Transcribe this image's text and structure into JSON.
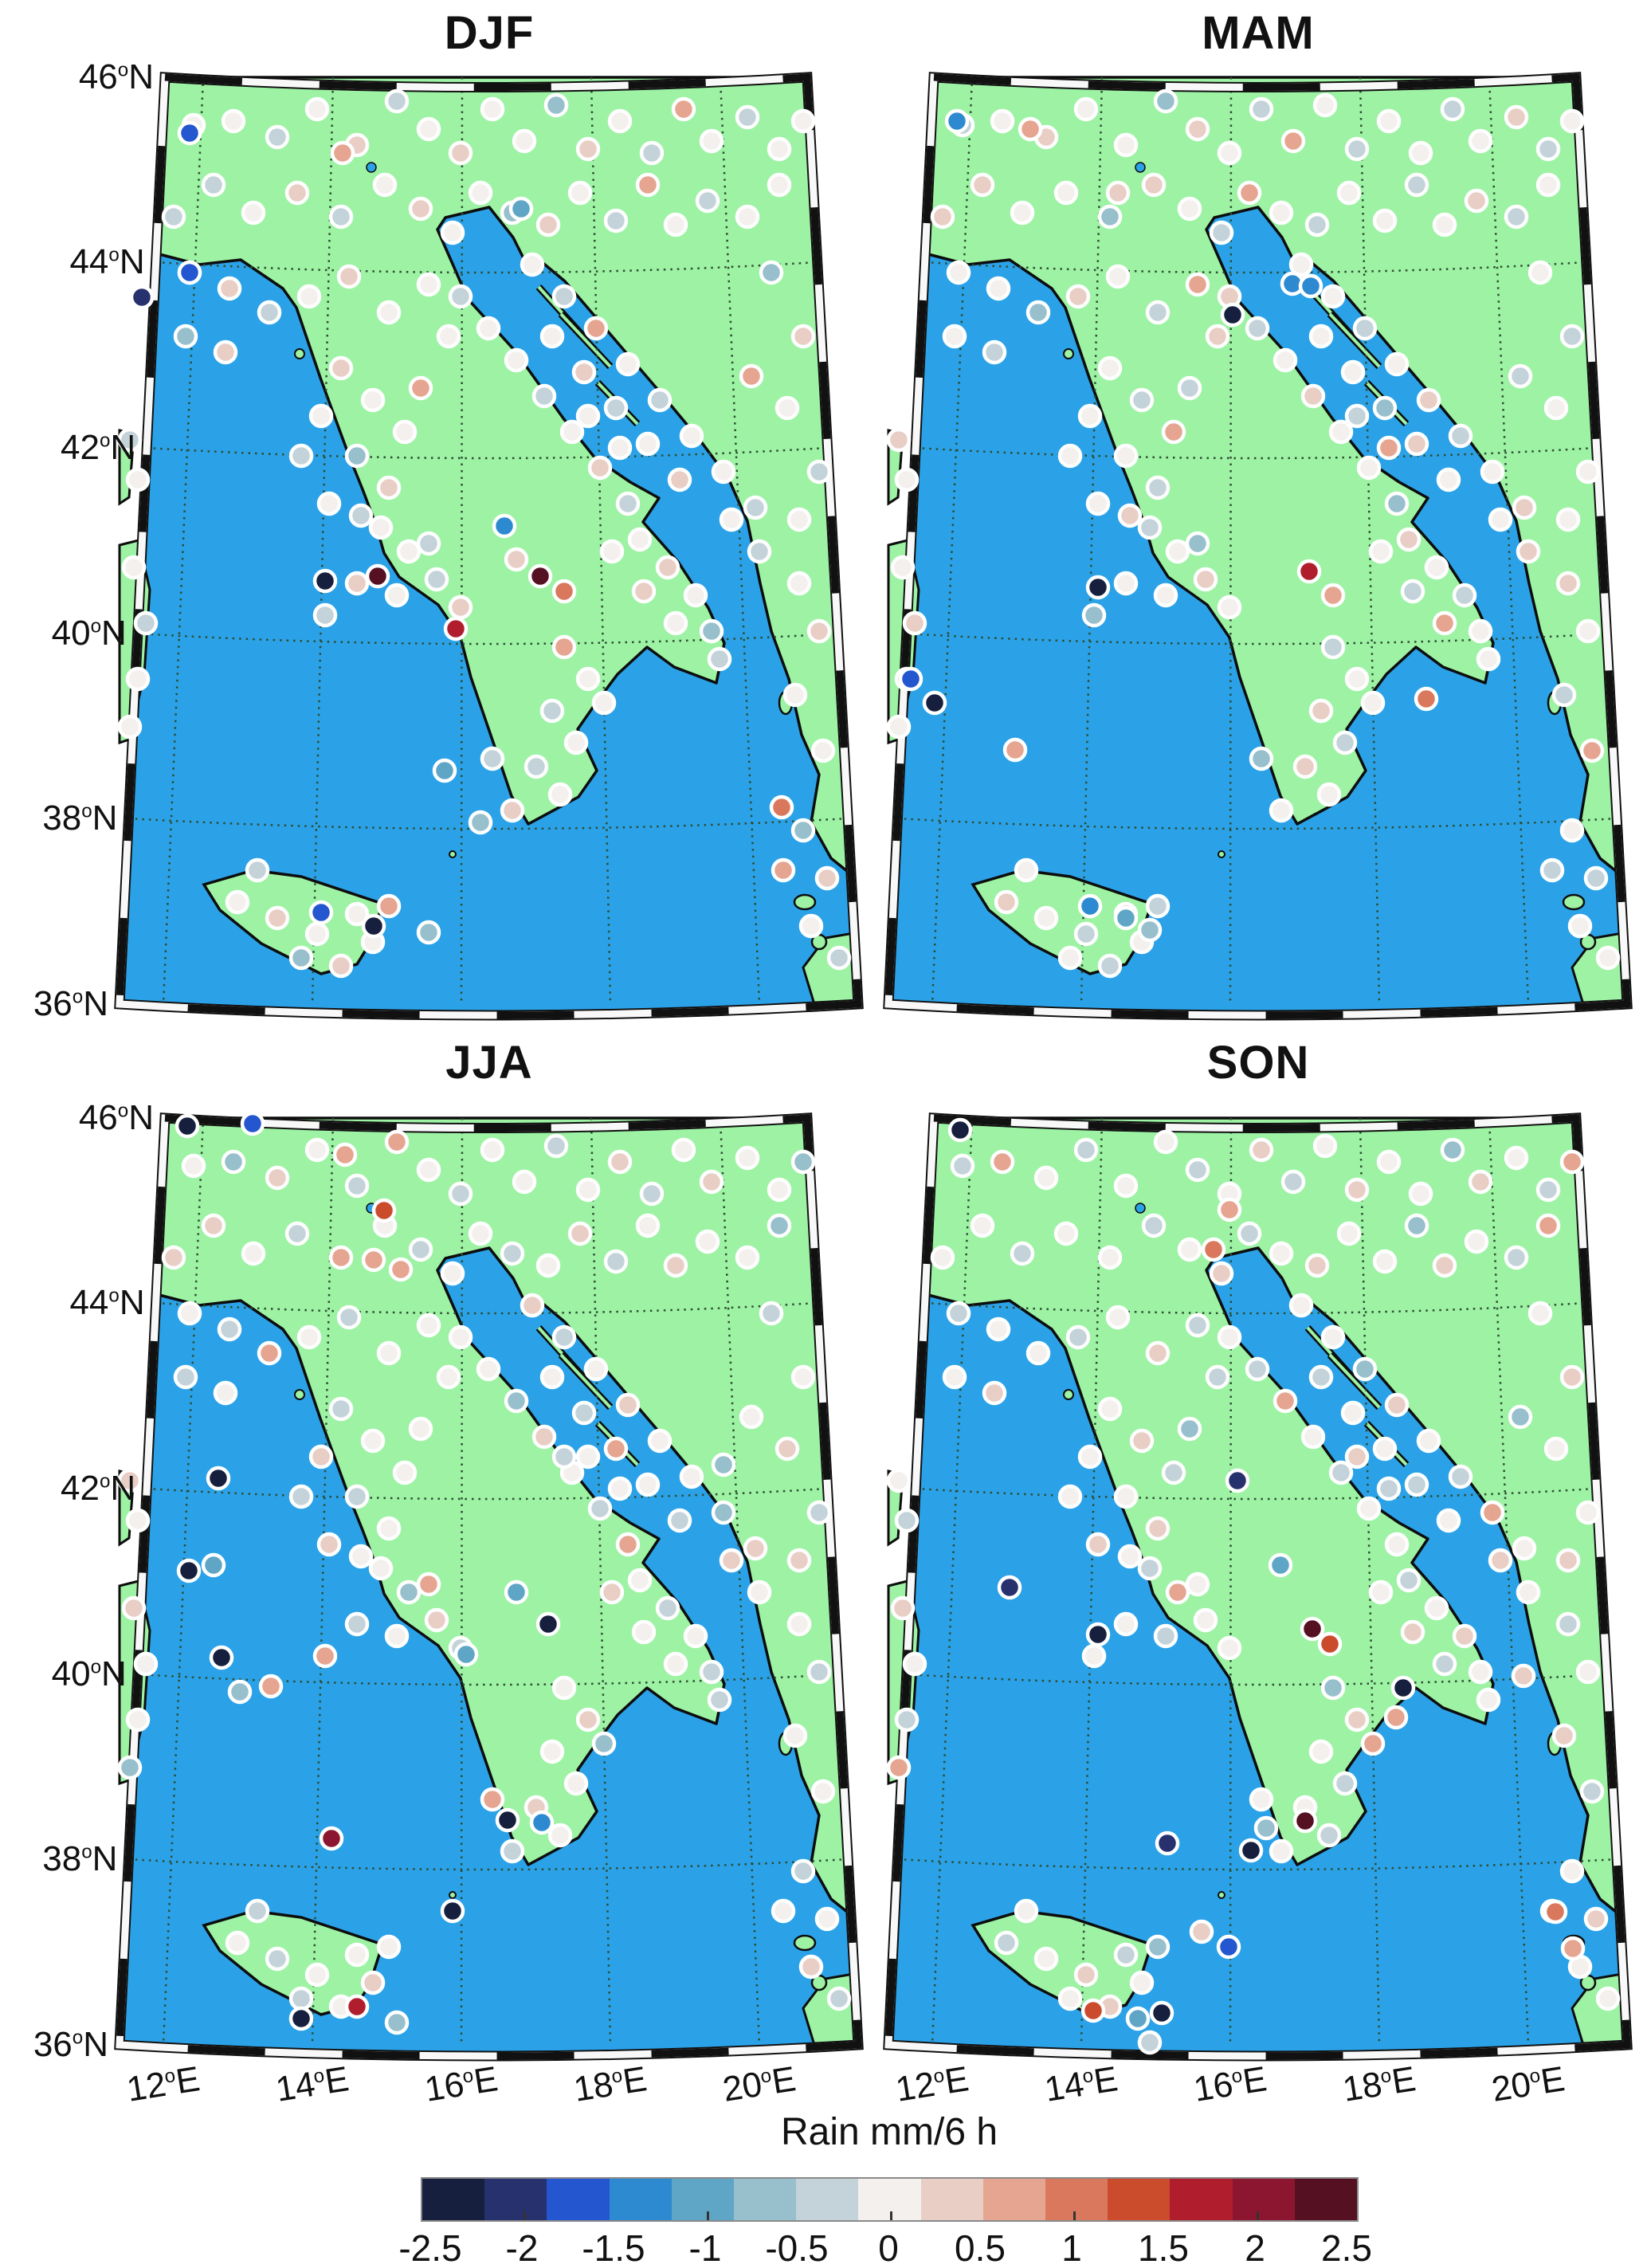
{
  "figure": {
    "panels": [
      {
        "id": "djf",
        "title": "DJF"
      },
      {
        "id": "mam",
        "title": "MAM"
      },
      {
        "id": "jja",
        "title": "JJA"
      },
      {
        "id": "son",
        "title": "SON"
      }
    ],
    "lat_ticks": [
      {
        "deg": "46",
        "hemi": "N"
      },
      {
        "deg": "44",
        "hemi": "N"
      },
      {
        "deg": "42",
        "hemi": "N"
      },
      {
        "deg": "40",
        "hemi": "N"
      },
      {
        "deg": "38",
        "hemi": "N"
      },
      {
        "deg": "36",
        "hemi": "N"
      }
    ],
    "lon_ticks": [
      {
        "deg": "12",
        "hemi": "E"
      },
      {
        "deg": "14",
        "hemi": "E"
      },
      {
        "deg": "16",
        "hemi": "E"
      },
      {
        "deg": "18",
        "hemi": "E"
      },
      {
        "deg": "20",
        "hemi": "E"
      }
    ],
    "colorbar": {
      "title": "Rain mm/6 h",
      "tick_labels": [
        "-2.5",
        "-2",
        "-1.5",
        "-1",
        "-0.5",
        "0",
        "0.5",
        "1",
        "1.5",
        "2",
        "2.5"
      ],
      "colors": [
        "#161f3d",
        "#27316d",
        "#2356cf",
        "#2e8ad0",
        "#5fa6c6",
        "#97bfcc",
        "#c3d3d9",
        "#f3f0ed",
        "#e8cec5",
        "#e5a590",
        "#d9785c",
        "#cb4c2d",
        "#b01e2e",
        "#8c1630",
        "#551022"
      ],
      "min": -2.5,
      "max": 2.5
    },
    "colors": {
      "sea": "#2ba2e8",
      "land": "#9df2a4",
      "coast": "#0d0d0d",
      "grid": "#2e4d33",
      "dot_ring": "#ffffff",
      "frame_black": "#111111",
      "frame_white": "#f8f8f8",
      "text": "#111111"
    }
  },
  "chart_data": {
    "type": "scatter",
    "subtype": "geo-scatter-map",
    "title": "Seasonal station rain anomaly maps (Italy / Adriatic region)",
    "units": "Rain mm/6 h",
    "seasons": [
      "DJF",
      "MAM",
      "JJA",
      "SON"
    ],
    "value_range": [
      -2.5,
      2.5
    ],
    "lat_range": [
      36,
      46
    ],
    "lon_range": [
      12,
      20
    ],
    "stations": [
      [
        95,
        65
      ],
      [
        145,
        60
      ],
      [
        200,
        80
      ],
      [
        250,
        45
      ],
      [
        300,
        90
      ],
      [
        350,
        35
      ],
      [
        390,
        70
      ],
      [
        430,
        100
      ],
      [
        470,
        45
      ],
      [
        510,
        85
      ],
      [
        550,
        40
      ],
      [
        590,
        95
      ],
      [
        630,
        60
      ],
      [
        670,
        100
      ],
      [
        710,
        45
      ],
      [
        745,
        85
      ],
      [
        790,
        55
      ],
      [
        830,
        95
      ],
      [
        860,
        60
      ],
      [
        120,
        140
      ],
      [
        170,
        175
      ],
      [
        225,
        150
      ],
      [
        280,
        180
      ],
      [
        335,
        140
      ],
      [
        380,
        170
      ],
      [
        420,
        200
      ],
      [
        455,
        150
      ],
      [
        495,
        175
      ],
      [
        540,
        190
      ],
      [
        580,
        150
      ],
      [
        625,
        185
      ],
      [
        665,
        140
      ],
      [
        700,
        190
      ],
      [
        740,
        160
      ],
      [
        790,
        180
      ],
      [
        830,
        140
      ],
      [
        70,
        180
      ],
      [
        90,
        250
      ],
      [
        140,
        270
      ],
      [
        190,
        300
      ],
      [
        240,
        280
      ],
      [
        290,
        255
      ],
      [
        340,
        300
      ],
      [
        390,
        265
      ],
      [
        85,
        330
      ],
      [
        135,
        350
      ],
      [
        520,
        240
      ],
      [
        560,
        280
      ],
      [
        600,
        320
      ],
      [
        640,
        365
      ],
      [
        680,
        410
      ],
      [
        720,
        455
      ],
      [
        760,
        500
      ],
      [
        800,
        545
      ],
      [
        545,
        330
      ],
      [
        585,
        375
      ],
      [
        625,
        420
      ],
      [
        665,
        465
      ],
      [
        705,
        510
      ],
      [
        590,
        430
      ],
      [
        630,
        470
      ],
      [
        820,
        250
      ],
      [
        860,
        330
      ],
      [
        840,
        420
      ],
      [
        880,
        500
      ],
      [
        795,
        380
      ],
      [
        855,
        560
      ],
      [
        430,
        280
      ],
      [
        465,
        320
      ],
      [
        500,
        360
      ],
      [
        535,
        405
      ],
      [
        570,
        450
      ],
      [
        605,
        495
      ],
      [
        640,
        540
      ],
      [
        415,
        330
      ],
      [
        280,
        370
      ],
      [
        320,
        410
      ],
      [
        360,
        450
      ],
      [
        300,
        480
      ],
      [
        340,
        520
      ],
      [
        255,
        430
      ],
      [
        230,
        480
      ],
      [
        380,
        395
      ],
      [
        265,
        540
      ],
      [
        305,
        555
      ],
      [
        330,
        570
      ],
      [
        365,
        600
      ],
      [
        400,
        635
      ],
      [
        350,
        655
      ],
      [
        430,
        670
      ],
      [
        390,
        590
      ],
      [
        655,
        585
      ],
      [
        690,
        620
      ],
      [
        725,
        655
      ],
      [
        700,
        690
      ],
      [
        745,
        700
      ],
      [
        660,
        650
      ],
      [
        620,
        600
      ],
      [
        755,
        735
      ],
      [
        560,
        720
      ],
      [
        590,
        760
      ],
      [
        545,
        800
      ],
      [
        575,
        840
      ],
      [
        610,
        790
      ],
      [
        525,
        870
      ],
      [
        555,
        905
      ],
      [
        495,
        925
      ],
      [
        470,
        860
      ],
      [
        150,
        1040
      ],
      [
        200,
        1060
      ],
      [
        250,
        1080
      ],
      [
        300,
        1055
      ],
      [
        230,
        1110
      ],
      [
        280,
        1120
      ],
      [
        320,
        1090
      ],
      [
        175,
        1000
      ],
      [
        340,
        1045
      ],
      [
        20,
        620
      ],
      [
        35,
        690
      ],
      [
        25,
        760
      ],
      [
        15,
        820
      ],
      [
        15,
        460
      ],
      [
        25,
        510
      ],
      [
        300,
        640
      ],
      [
        260,
        680
      ],
      [
        855,
        640
      ],
      [
        880,
        700
      ],
      [
        850,
        780
      ],
      [
        885,
        850
      ],
      [
        860,
        950
      ],
      [
        890,
        1010
      ],
      [
        870,
        1070
      ],
      [
        905,
        1110
      ],
      [
        835,
        1000
      ],
      [
        770,
        560
      ],
      [
        805,
        600
      ]
    ],
    "base_values": [
      0,
      0.1,
      -0.2,
      0,
      0.3,
      -0.4,
      0,
      0.2,
      -0.1,
      0,
      -0.6,
      0.4,
      0,
      -0.3,
      0.5,
      0,
      -0.5,
      0,
      0.1,
      -0.2,
      0,
      0.3,
      -0.4,
      0,
      0.2,
      -0.1,
      0,
      -0.6,
      0.4,
      0,
      -0.3,
      0.5,
      0,
      -0.5,
      0,
      0.1,
      -0.2,
      0,
      0.3,
      -0.4,
      0,
      0.2,
      -0.1,
      0,
      -0.6,
      0.4,
      0,
      -0.3,
      0.5,
      0,
      -0.5,
      0,
      0.1,
      -0.2,
      0,
      0.3,
      -0.4,
      0,
      0.2,
      -0.1,
      0,
      -0.6,
      0.4,
      0,
      -0.3,
      0.5,
      0,
      -0.5,
      0,
      0.1,
      -0.2,
      0,
      0.3,
      -0.4,
      0,
      0.2,
      -0.1,
      0,
      -0.6,
      0.4,
      0,
      -0.3,
      0.5,
      0,
      -0.5,
      0,
      0.1,
      -0.2,
      0,
      0.3,
      -0.4,
      0,
      0.2,
      -0.1,
      0,
      -0.6,
      0.4,
      0,
      -0.3,
      0.5,
      0,
      -0.5,
      0,
      0.1,
      -0.2,
      0,
      0.3,
      -0.4,
      0,
      0.2,
      -0.1,
      0,
      -0.6,
      0.4,
      0,
      -0.3,
      0.5,
      0,
      -0.5,
      0,
      0.1,
      -0.2,
      0,
      0.3,
      -0.4,
      0,
      0.2,
      -0.1,
      0,
      -0.6,
      0.4,
      0,
      -0.3,
      0.5,
      0,
      -0.5
    ],
    "season_shifts": {
      "DJF": 0,
      "MAM": 5,
      "JJA": 9,
      "SON": 13
    },
    "extras": {
      "DJF": [
        [
          90,
          75,
          -1.7
        ],
        [
          30,
          281,
          -2.0
        ],
        [
          90,
          250,
          -1.6
        ],
        [
          282,
          100,
          0.5
        ],
        [
          506,
          170,
          -1.1
        ],
        [
          260,
          637,
          -2.4
        ],
        [
          326,
          631,
          2.4
        ],
        [
          485,
          568,
          -1.3
        ],
        [
          530,
          631,
          2.2
        ],
        [
          560,
          650,
          0.9
        ],
        [
          500,
          610,
          0.4
        ],
        [
          424,
          697,
          1.6
        ],
        [
          410,
          875,
          -0.9
        ],
        [
          455,
          940,
          -0.6
        ],
        [
          255,
          1053,
          -1.8
        ],
        [
          321,
          1070,
          -2.4
        ],
        [
          390,
          1078,
          -0.8
        ],
        [
          833,
          921,
          1.0
        ]
      ],
      "MAM": [
        [
          88,
          60,
          -1.5
        ],
        [
          180,
          70,
          0.5
        ],
        [
          290,
          150,
          0.4
        ],
        [
          434,
          303,
          -2.2
        ],
        [
          509,
          264,
          -1.2
        ],
        [
          532,
          267,
          -1.4
        ],
        [
          265,
          645,
          -2.4
        ],
        [
          530,
          625,
          1.7
        ],
        [
          560,
          655,
          0.8
        ],
        [
          677,
          785,
          0.9
        ],
        [
          161,
          849,
          0.8
        ],
        [
          30,
          760,
          -1.6
        ],
        [
          60,
          790,
          -2.2
        ],
        [
          255,
          1045,
          -1.5
        ],
        [
          300,
          1060,
          -1.0
        ],
        [
          330,
          1075,
          -0.6
        ]
      ],
      "JJA": [
        [
          87,
          15,
          -2.5
        ],
        [
          169,
          12,
          -1.7
        ],
        [
          285,
          51,
          0.8
        ],
        [
          334,
          121,
          1.2
        ],
        [
          321,
          183,
          0.7
        ],
        [
          355,
          195,
          0.6
        ],
        [
          126,
          457,
          -2.4
        ],
        [
          89,
          573,
          -2.3
        ],
        [
          120,
          566,
          -1.1
        ],
        [
          130,
          682,
          -2.2
        ],
        [
          192,
          718,
          0.8
        ],
        [
          153,
          725,
          -0.7
        ],
        [
          268,
          909,
          2.0
        ],
        [
          489,
          886,
          -2.4
        ],
        [
          532,
          889,
          -1.5
        ],
        [
          437,
          678,
          -1.1
        ],
        [
          540,
          640,
          -2.2
        ],
        [
          500,
          600,
          -1.0
        ],
        [
          420,
          1000,
          -2.3
        ],
        [
          300,
          1120,
          1.7
        ],
        [
          230,
          1135,
          -2.4
        ],
        [
          350,
          1140,
          -0.8
        ],
        [
          560,
          430,
          -0.5
        ],
        [
          760,
          440,
          -0.6
        ]
      ],
      "SON": [
        [
          92,
          20,
          -2.2
        ],
        [
          430,
          120,
          0.6
        ],
        [
          410,
          170,
          1.1
        ],
        [
          440,
          460,
          -2.1
        ],
        [
          494,
          566,
          -0.9
        ],
        [
          154,
          594,
          -2.0
        ],
        [
          265,
          653,
          -2.4
        ],
        [
          534,
          646,
          2.4
        ],
        [
          556,
          665,
          1.3
        ],
        [
          648,
          720,
          -2.3
        ],
        [
          639,
          757,
          0.5
        ],
        [
          799,
          705,
          0.4
        ],
        [
          525,
          887,
          2.3
        ],
        [
          457,
          924,
          -2.4
        ],
        [
          476,
          896,
          -0.7
        ],
        [
          352,
          915,
          -2.0
        ],
        [
          429,
          1045,
          -1.7
        ],
        [
          395,
          1026,
          0.4
        ],
        [
          259,
          1125,
          1.3
        ],
        [
          315,
          1135,
          -0.9
        ],
        [
          345,
          1128,
          -2.4
        ],
        [
          330,
          1165,
          -0.5
        ],
        [
          839,
          1001,
          0.9
        ],
        [
          861,
          1047,
          0.8
        ]
      ]
    }
  }
}
